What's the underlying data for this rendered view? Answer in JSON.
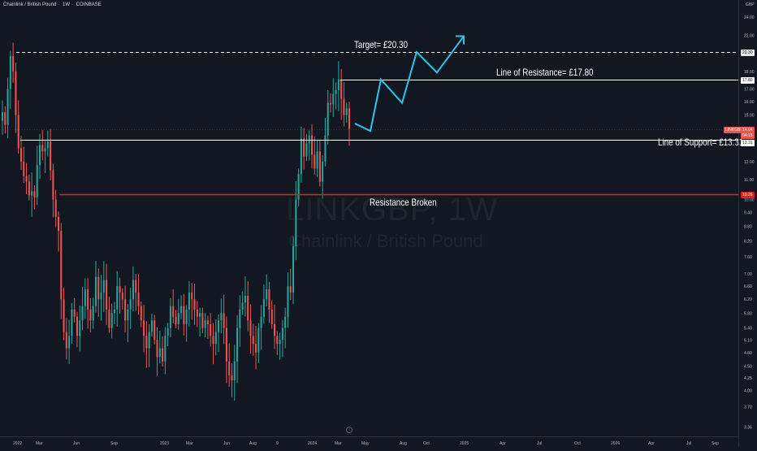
{
  "header": {
    "symbol_name": "Chainlink / British Pound",
    "interval": "1W",
    "exchange": "COINBASE"
  },
  "watermark": {
    "symbol": "LINKGBP, 1W",
    "name": "Chainlink / British Pound"
  },
  "currency": "GBP",
  "annotations": {
    "target": "Target= £20.30",
    "resistance": "Line of Resistance= £17.80",
    "support": "Line of Support= £13.31",
    "broken": "Resistance Broken"
  },
  "price_tags": {
    "target": "20.30",
    "resistance": "17.80",
    "symbol": "LINKGBP",
    "last": "14.04",
    "countdown": "04:15",
    "support": "13.31",
    "broken_level": "10.26"
  },
  "colors": {
    "background": "#131722",
    "up_candle": "#26a69a",
    "down_candle": "#ef5350",
    "projection": "#29c6e8",
    "broken_line": "#e3201b",
    "level_lines": "#ffffff"
  },
  "icons": {
    "goto_realtime": "go-to-realtime-icon"
  },
  "chart_data": {
    "type": "candlestick",
    "title": "Chainlink / British Pound, 1W, COINBASE",
    "scale": "log",
    "ylim": [
      3.3,
      25.0
    ],
    "y_ticks": [
      "24.00",
      "22.00",
      "20.30",
      "18.50",
      "17.80",
      "17.00",
      "16.00",
      "15.00",
      "14.04",
      "13.31",
      "12.00",
      "11.00",
      "10.26",
      "10.00",
      "9.40",
      "8.80",
      "8.20",
      "7.60",
      "7.00",
      "6.60",
      "6.20",
      "5.80",
      "5.40",
      "5.10",
      "4.80",
      "4.50",
      "4.25",
      "4.00",
      "3.70",
      "3.36"
    ],
    "x_ticks": [
      "2022",
      "Mar",
      "Jun",
      "Sep",
      "2023",
      "Mar",
      "Jun",
      "Aug",
      "9",
      "2024",
      "Mar",
      "May",
      "Aug",
      "Oct",
      "2025",
      "Apr",
      "Jul",
      "Oct",
      "2026",
      "Apr",
      "Jul",
      "Sep"
    ],
    "levels": [
      {
        "name": "Target",
        "value": 20.3,
        "style": "dashed"
      },
      {
        "name": "Line of Resistance",
        "value": 17.8,
        "style": "solid"
      },
      {
        "name": "Line of Support",
        "value": 13.31,
        "style": "solid"
      },
      {
        "name": "Resistance Broken",
        "value": 10.26,
        "style": "solid"
      }
    ],
    "last_price": 14.04,
    "closes": [
      15.2,
      14.3,
      17.0,
      19.9,
      18.5,
      15.0,
      12.8,
      12.0,
      11.2,
      10.9,
      10.2,
      10.4,
      10.1,
      11.8,
      13.0,
      12.6,
      12.8,
      13.2,
      11.5,
      10.0,
      9.2,
      8.6,
      6.2,
      5.3,
      4.9,
      5.2,
      5.9,
      5.7,
      5.2,
      5.6,
      6.0,
      6.5,
      5.9,
      5.6,
      6.0,
      6.9,
      6.2,
      6.4,
      6.8,
      5.9,
      5.4,
      5.8,
      5.9,
      6.6,
      6.4,
      6.2,
      5.6,
      5.9,
      6.2,
      6.8,
      6.4,
      6.0,
      5.6,
      5.2,
      4.9,
      5.3,
      5.6,
      5.1,
      4.7,
      4.9,
      4.6,
      5.2,
      5.4,
      6.0,
      5.7,
      5.5,
      5.8,
      6.0,
      5.5,
      5.9,
      6.4,
      6.2,
      5.9,
      5.7,
      5.8,
      5.4,
      5.6,
      5.5,
      5.2,
      5.0,
      5.3,
      5.6,
      5.8,
      5.4,
      4.6,
      4.3,
      4.2,
      4.6,
      5.4,
      5.9,
      6.1,
      6.3,
      5.6,
      5.2,
      5.0,
      4.8,
      5.4,
      5.7,
      6.2,
      6.5,
      5.9,
      5.5,
      5.2,
      5.0,
      5.1,
      5.4,
      5.7,
      6.6,
      6.4,
      8.0,
      10.0,
      11.3,
      13.4,
      12.3,
      13.1,
      13.6,
      12.4,
      11.6,
      12.6,
      10.9,
      12.0,
      13.6,
      15.9,
      15.8,
      16.6,
      16.9,
      17.8,
      16.2,
      15.0,
      15.5,
      14.04
    ],
    "projection": [
      14.4,
      13.9,
      17.8,
      15.9,
      20.3,
      18.4,
      21.9
    ]
  }
}
